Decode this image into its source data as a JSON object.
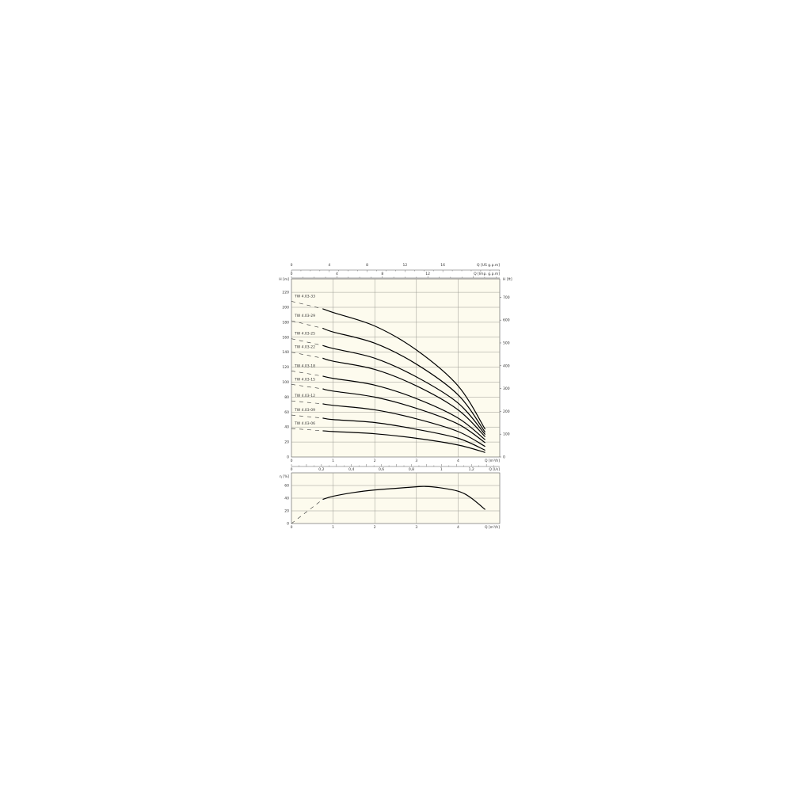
{
  "chart_data": [
    {
      "type": "line",
      "panel": "head",
      "xlabel": "Q [m³/h]",
      "ylabel": "H [m]",
      "ylabel_right": "H [ft]",
      "top_axis_1_label": "Q [US g.p.m]",
      "top_axis_2_label": "Q [Imp. g.p.m]",
      "bottom_axis_2_label": "Q [l/s]",
      "xlim": [
        0,
        5
      ],
      "ylim": [
        0,
        238
      ],
      "x_ticks": [
        "0",
        "1",
        "2",
        "3",
        "4"
      ],
      "y_ticks": [
        "0",
        "20",
        "40",
        "60",
        "80",
        "100",
        "120",
        "140",
        "160",
        "180",
        "200",
        "220"
      ],
      "y_right_ticks": [
        "0",
        "100",
        "200",
        "300",
        "400",
        "500",
        "600",
        "700"
      ],
      "us_gpm_ticks": [
        "0",
        "4",
        "8",
        "12",
        "16"
      ],
      "imp_gpm_ticks": [
        "0",
        "4",
        "8",
        "12"
      ],
      "ls_ticks": [
        "0",
        "0,2",
        "0,4",
        "0,6",
        "0,8",
        "1",
        "1,2"
      ],
      "grid": true,
      "x": [
        0.75,
        1,
        2,
        3,
        4,
        4.65
      ],
      "series": [
        {
          "name": "TW 4.03-33",
          "h_at_zero": 208,
          "values": [
            198,
            193,
            175,
            143,
            95,
            37
          ]
        },
        {
          "name": "TW 4.03-29",
          "h_at_zero": 182,
          "values": [
            172,
            167,
            152,
            124,
            83,
            33
          ]
        },
        {
          "name": "TW 4.03-25",
          "h_at_zero": 158,
          "values": [
            149,
            145,
            132,
            107,
            72,
            30
          ]
        },
        {
          "name": "TW 4.03-22",
          "h_at_zero": 140,
          "values": [
            132,
            128,
            117,
            95,
            63,
            27
          ]
        },
        {
          "name": "TW 4.03-18",
          "h_at_zero": 115,
          "values": [
            108,
            105,
            96,
            78,
            52,
            23
          ]
        },
        {
          "name": "TW 4.03-15",
          "h_at_zero": 97,
          "values": [
            91,
            88,
            80,
            65,
            44,
            19
          ]
        },
        {
          "name": "TW 4.03-12",
          "h_at_zero": 75,
          "values": [
            71,
            69,
            63,
            51,
            34,
            14
          ]
        },
        {
          "name": "TW 4.03-09",
          "h_at_zero": 56,
          "values": [
            52,
            50,
            46,
            37,
            25,
            9
          ]
        },
        {
          "name": "TW 4.03-06",
          "h_at_zero": 38,
          "values": [
            35,
            34,
            31,
            25,
            16,
            6
          ]
        }
      ]
    },
    {
      "type": "line",
      "panel": "efficiency",
      "xlabel": "Q [m³/h]",
      "ylabel": "η [%]",
      "xlim": [
        0,
        5
      ],
      "ylim": [
        0,
        80
      ],
      "y_ticks": [
        "0",
        "20",
        "40",
        "60"
      ],
      "x_ticks": [
        "0",
        "1",
        "2",
        "3",
        "4"
      ],
      "grid": true,
      "dashed": {
        "x": [
          0,
          0.75
        ],
        "values": [
          0,
          38
        ]
      },
      "x": [
        0.75,
        1,
        1.5,
        2,
        2.5,
        3,
        3.2,
        3.5,
        4,
        4.3,
        4.65
      ],
      "values": [
        38,
        43,
        49,
        53,
        55.5,
        58,
        58.5,
        57,
        51,
        41,
        22
      ]
    }
  ],
  "colors": {
    "background": "#fdfbee",
    "grid": "#9a9a92",
    "curve": "#000000"
  }
}
